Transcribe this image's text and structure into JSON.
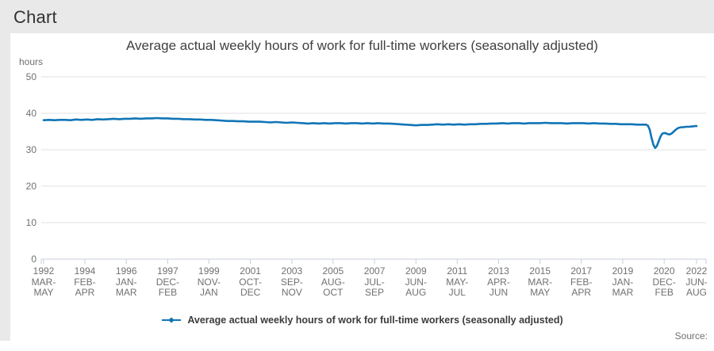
{
  "page": {
    "heading": "Chart",
    "source_label": "Source:"
  },
  "chart_data": {
    "type": "line",
    "title": "Average actual weekly hours of work for full-time workers (seasonally adjusted)",
    "y_axis_label": "hours",
    "xlabel": "",
    "ylabel": "hours",
    "ylim": [
      0,
      50
    ],
    "y_ticks": [
      0,
      10,
      20,
      30,
      40,
      50
    ],
    "xlim": [
      1992.17,
      2022.42
    ],
    "grid": "horizontal",
    "legend_position": "bottom",
    "line_color": "#1175b6",
    "axis_color": "#c8cedd",
    "grid_color": "#e2e2e2",
    "x_ticks": [
      {
        "t": 1992.17,
        "year": "1992",
        "p1": "MAR-",
        "p2": "MAY"
      },
      {
        "t": 1994.08,
        "year": "1994",
        "p1": "FEB-",
        "p2": "APR"
      },
      {
        "t": 1996.0,
        "year": "1996",
        "p1": "JAN-",
        "p2": "MAR"
      },
      {
        "t": 1997.92,
        "year": "1997",
        "p1": "DEC-",
        "p2": "FEB"
      },
      {
        "t": 1999.83,
        "year": "1999",
        "p1": "NOV-",
        "p2": "JAN"
      },
      {
        "t": 2001.75,
        "year": "2001",
        "p1": "OCT-",
        "p2": "DEC"
      },
      {
        "t": 2003.67,
        "year": "2003",
        "p1": "SEP-",
        "p2": "NOV"
      },
      {
        "t": 2005.58,
        "year": "2005",
        "p1": "AUG-",
        "p2": "OCT"
      },
      {
        "t": 2007.5,
        "year": "2007",
        "p1": "JUL-",
        "p2": "SEP"
      },
      {
        "t": 2009.42,
        "year": "2009",
        "p1": "JUN-",
        "p2": "AUG"
      },
      {
        "t": 2011.33,
        "year": "2011",
        "p1": "MAY-",
        "p2": "JUL"
      },
      {
        "t": 2013.25,
        "year": "2013",
        "p1": "APR-",
        "p2": "JUN"
      },
      {
        "t": 2015.17,
        "year": "2015",
        "p1": "MAR-",
        "p2": "MAY"
      },
      {
        "t": 2017.08,
        "year": "2017",
        "p1": "FEB-",
        "p2": "APR"
      },
      {
        "t": 2019.0,
        "year": "2019",
        "p1": "JAN-",
        "p2": "MAR"
      },
      {
        "t": 2020.92,
        "year": "2020",
        "p1": "DEC-",
        "p2": "FEB"
      },
      {
        "t": 2022.42,
        "year": "2022",
        "p1": "JUN-",
        "p2": "AUG"
      }
    ],
    "series": [
      {
        "name": "Average actual weekly hours of work for full-time workers (seasonally adjusted)",
        "color": "#1175b6",
        "points": [
          [
            1992.17,
            38.1
          ],
          [
            1992.42,
            38.2
          ],
          [
            1992.67,
            38.1
          ],
          [
            1992.92,
            38.2
          ],
          [
            1993.17,
            38.2
          ],
          [
            1993.42,
            38.1
          ],
          [
            1993.67,
            38.3
          ],
          [
            1993.92,
            38.2
          ],
          [
            1994.17,
            38.3
          ],
          [
            1994.42,
            38.2
          ],
          [
            1994.67,
            38.4
          ],
          [
            1994.92,
            38.3
          ],
          [
            1995.17,
            38.4
          ],
          [
            1995.42,
            38.5
          ],
          [
            1995.67,
            38.4
          ],
          [
            1995.92,
            38.5
          ],
          [
            1996.17,
            38.5
          ],
          [
            1996.42,
            38.6
          ],
          [
            1996.67,
            38.5
          ],
          [
            1996.92,
            38.6
          ],
          [
            1997.17,
            38.6
          ],
          [
            1997.42,
            38.7
          ],
          [
            1997.67,
            38.6
          ],
          [
            1997.92,
            38.6
          ],
          [
            1998.17,
            38.5
          ],
          [
            1998.42,
            38.5
          ],
          [
            1998.67,
            38.4
          ],
          [
            1998.92,
            38.4
          ],
          [
            1999.17,
            38.3
          ],
          [
            1999.42,
            38.3
          ],
          [
            1999.67,
            38.2
          ],
          [
            1999.92,
            38.2
          ],
          [
            2000.17,
            38.1
          ],
          [
            2000.42,
            38.0
          ],
          [
            2000.67,
            37.9
          ],
          [
            2000.92,
            37.9
          ],
          [
            2001.17,
            37.8
          ],
          [
            2001.42,
            37.8
          ],
          [
            2001.67,
            37.7
          ],
          [
            2001.92,
            37.7
          ],
          [
            2002.17,
            37.7
          ],
          [
            2002.42,
            37.6
          ],
          [
            2002.67,
            37.5
          ],
          [
            2002.92,
            37.6
          ],
          [
            2003.17,
            37.5
          ],
          [
            2003.42,
            37.4
          ],
          [
            2003.67,
            37.5
          ],
          [
            2003.92,
            37.4
          ],
          [
            2004.17,
            37.3
          ],
          [
            2004.42,
            37.2
          ],
          [
            2004.67,
            37.3
          ],
          [
            2004.92,
            37.2
          ],
          [
            2005.17,
            37.3
          ],
          [
            2005.42,
            37.2
          ],
          [
            2005.67,
            37.3
          ],
          [
            2005.92,
            37.3
          ],
          [
            2006.17,
            37.2
          ],
          [
            2006.42,
            37.3
          ],
          [
            2006.67,
            37.3
          ],
          [
            2006.92,
            37.2
          ],
          [
            2007.17,
            37.3
          ],
          [
            2007.42,
            37.2
          ],
          [
            2007.67,
            37.3
          ],
          [
            2007.92,
            37.2
          ],
          [
            2008.17,
            37.2
          ],
          [
            2008.42,
            37.1
          ],
          [
            2008.67,
            37.0
          ],
          [
            2008.92,
            36.9
          ],
          [
            2009.17,
            36.8
          ],
          [
            2009.42,
            36.7
          ],
          [
            2009.67,
            36.8
          ],
          [
            2009.92,
            36.8
          ],
          [
            2010.17,
            36.9
          ],
          [
            2010.42,
            37.0
          ],
          [
            2010.67,
            36.9
          ],
          [
            2010.92,
            37.0
          ],
          [
            2011.17,
            36.9
          ],
          [
            2011.42,
            37.0
          ],
          [
            2011.67,
            36.9
          ],
          [
            2011.92,
            37.0
          ],
          [
            2012.17,
            37.0
          ],
          [
            2012.42,
            37.1
          ],
          [
            2012.67,
            37.1
          ],
          [
            2012.92,
            37.2
          ],
          [
            2013.17,
            37.2
          ],
          [
            2013.42,
            37.3
          ],
          [
            2013.67,
            37.2
          ],
          [
            2013.92,
            37.3
          ],
          [
            2014.17,
            37.3
          ],
          [
            2014.42,
            37.2
          ],
          [
            2014.67,
            37.3
          ],
          [
            2014.92,
            37.3
          ],
          [
            2015.17,
            37.3
          ],
          [
            2015.42,
            37.4
          ],
          [
            2015.67,
            37.3
          ],
          [
            2015.92,
            37.3
          ],
          [
            2016.17,
            37.3
          ],
          [
            2016.42,
            37.2
          ],
          [
            2016.67,
            37.3
          ],
          [
            2016.92,
            37.3
          ],
          [
            2017.17,
            37.3
          ],
          [
            2017.42,
            37.2
          ],
          [
            2017.67,
            37.3
          ],
          [
            2017.92,
            37.2
          ],
          [
            2018.17,
            37.2
          ],
          [
            2018.42,
            37.1
          ],
          [
            2018.67,
            37.1
          ],
          [
            2018.92,
            37.0
          ],
          [
            2019.17,
            37.0
          ],
          [
            2019.42,
            37.0
          ],
          [
            2019.67,
            36.9
          ],
          [
            2019.92,
            36.9
          ],
          [
            2020.0,
            36.9
          ],
          [
            2020.08,
            36.9
          ],
          [
            2020.17,
            36.6
          ],
          [
            2020.25,
            35.5
          ],
          [
            2020.33,
            33.4
          ],
          [
            2020.42,
            31.4
          ],
          [
            2020.5,
            30.5
          ],
          [
            2020.58,
            31.0
          ],
          [
            2020.67,
            32.4
          ],
          [
            2020.75,
            33.6
          ],
          [
            2020.83,
            34.4
          ],
          [
            2020.92,
            34.6
          ],
          [
            2021.0,
            34.5
          ],
          [
            2021.08,
            34.3
          ],
          [
            2021.17,
            34.2
          ],
          [
            2021.25,
            34.4
          ],
          [
            2021.33,
            34.8
          ],
          [
            2021.42,
            35.3
          ],
          [
            2021.5,
            35.7
          ],
          [
            2021.58,
            36.0
          ],
          [
            2021.67,
            36.1
          ],
          [
            2021.75,
            36.2
          ],
          [
            2021.83,
            36.2
          ],
          [
            2021.92,
            36.3
          ],
          [
            2022.0,
            36.3
          ],
          [
            2022.08,
            36.3
          ],
          [
            2022.17,
            36.4
          ],
          [
            2022.25,
            36.4
          ],
          [
            2022.33,
            36.5
          ],
          [
            2022.42,
            36.5
          ]
        ]
      }
    ]
  }
}
